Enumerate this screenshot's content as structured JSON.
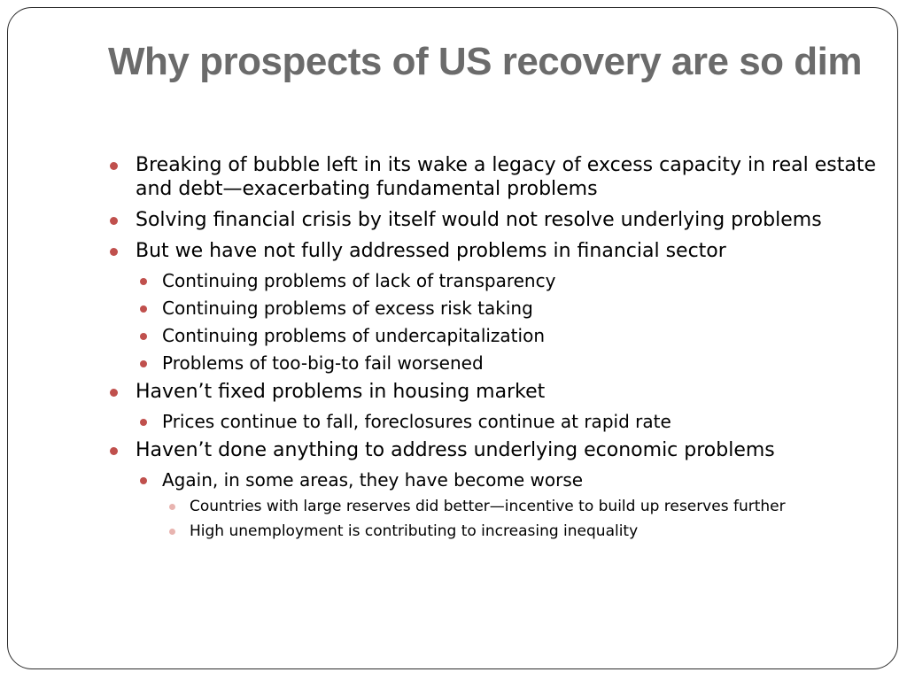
{
  "slide": {
    "title": "Why prospects of US recovery are so dim",
    "bullets": [
      {
        "level": 1,
        "text": "Breaking of bubble left in its wake a legacy of excess capacity in real estate and debt—exacerbating fundamental problems"
      },
      {
        "level": 1,
        "text": "Solving financial crisis by itself would not resolve underlying problems"
      },
      {
        "level": 1,
        "text": "But we have not fully addressed problems in financial sector"
      },
      {
        "level": 2,
        "text": "Continuing problems of lack of transparency"
      },
      {
        "level": 2,
        "text": "Continuing problems of excess risk taking"
      },
      {
        "level": 2,
        "text": "Continuing problems of undercapitalization"
      },
      {
        "level": 2,
        "text": "Problems of too-big-to fail worsened"
      },
      {
        "level": 1,
        "text": "Haven’t fixed problems in housing market"
      },
      {
        "level": 2,
        "text": "Prices continue to fall, foreclosures continue at rapid rate"
      },
      {
        "level": 1,
        "text": "Haven’t done anything to address underlying economic problems"
      },
      {
        "level": 2,
        "text": "Again, in some areas, they have become worse"
      },
      {
        "level": 3,
        "text": "Countries with large reserves did better—incentive to build up reserves further"
      },
      {
        "level": 3,
        "text": "High unemployment is contributing to increasing inequality"
      }
    ]
  },
  "colors": {
    "title": "#6b6b6b",
    "bullet_primary": "#c0504d",
    "bullet_secondary": "#e8b4b0",
    "frame_border": "#2b2b2b"
  }
}
